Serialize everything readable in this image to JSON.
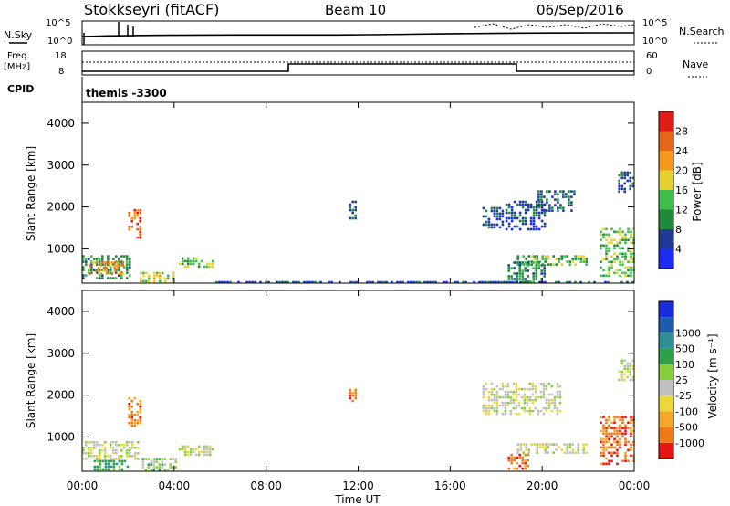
{
  "header": {
    "title": "Stokkseyri (fitACF)",
    "beam": "Beam 10",
    "date": "06/Sep/2016"
  },
  "top_panels": {
    "nsky_label": "N.Sky",
    "nsky_ticks": [
      "10^5",
      "10^0"
    ],
    "nsearch_label": "N.Search",
    "nsearch_ticks": [
      "10^5",
      "10^0"
    ],
    "freq_label_1": "Freq.",
    "freq_label_2": "[MHz]",
    "freq_ticks": [
      "18",
      "8"
    ],
    "nave_label": "Nave",
    "nave_ticks": [
      "60",
      "0"
    ],
    "cpid_label": "CPID",
    "cpid_value": "themis -3300"
  },
  "x_axis": {
    "label": "Time UT",
    "ticks": [
      "00:00",
      "04:00",
      "08:00",
      "12:00",
      "16:00",
      "20:00",
      "00:00"
    ]
  },
  "y_axis": {
    "label": "Slant Range [km]",
    "ticks": [
      "1000",
      "2000",
      "3000",
      "4000"
    ]
  },
  "colors": {
    "power": [
      "#1e2bf0",
      "#1f3c92",
      "#1f8a3a",
      "#3fbf4a",
      "#e5d130",
      "#f39a1e",
      "#e7661a",
      "#e01a14"
    ],
    "velocity": [
      "#ea1313",
      "#ef7a1a",
      "#f5a92a",
      "#ecd83a",
      "#c0c0c0",
      "#86cf3a",
      "#2fa04a",
      "#2e8f95",
      "#1c5ca8",
      "#1a2bdc"
    ]
  },
  "chart_data": [
    {
      "type": "heatmap",
      "title": "Power",
      "colorbar_label": "Power [dB]",
      "colorbar_ticks": [
        "4",
        "8",
        "12",
        "16",
        "20",
        "24",
        "28"
      ],
      "xlim": [
        0,
        24
      ],
      "ylim": [
        180,
        4500
      ],
      "patches": [
        {
          "t0": 0.0,
          "t1": 2.2,
          "r0": 250,
          "r1": 850,
          "c": 2
        },
        {
          "t0": 0.3,
          "t1": 1.8,
          "r0": 350,
          "r1": 700,
          "c": 5
        },
        {
          "t0": 2.0,
          "t1": 2.6,
          "r0": 1200,
          "r1": 1950,
          "c": 6
        },
        {
          "t0": 2.5,
          "t1": 4.0,
          "r0": 200,
          "r1": 450,
          "c": 4
        },
        {
          "t0": 4.2,
          "t1": 5.8,
          "r0": 550,
          "r1": 800,
          "c": 3
        },
        {
          "t0": 11.6,
          "t1": 11.9,
          "r0": 1700,
          "r1": 2150,
          "c": 1
        },
        {
          "t0": 17.4,
          "t1": 18.3,
          "r0": 1500,
          "r1": 2000,
          "c": 1
        },
        {
          "t0": 18.4,
          "t1": 20.2,
          "r0": 1400,
          "r1": 2150,
          "c": 1
        },
        {
          "t0": 19.8,
          "t1": 21.5,
          "r0": 1900,
          "r1": 2400,
          "c": 1
        },
        {
          "t0": 18.9,
          "t1": 22.0,
          "r0": 600,
          "r1": 850,
          "c": 3
        },
        {
          "t0": 18.5,
          "t1": 20.2,
          "r0": 200,
          "r1": 700,
          "c": 2
        },
        {
          "t0": 22.5,
          "t1": 24.0,
          "r0": 300,
          "r1": 1500,
          "c": 3
        },
        {
          "t0": 23.3,
          "t1": 24.0,
          "r0": 2300,
          "r1": 2850,
          "c": 1
        },
        {
          "t0": 5.8,
          "t1": 24.0,
          "r0": 180,
          "r1": 230,
          "c": 1
        }
      ]
    },
    {
      "type": "heatmap",
      "title": "Velocity",
      "colorbar_label": "Velocity [m s⁻¹]",
      "colorbar_ticks": [
        "-1000",
        "-500",
        "-100",
        "-25",
        "25",
        "100",
        "500",
        "1000"
      ],
      "xlim": [
        0,
        24
      ],
      "ylim": [
        180,
        4500
      ],
      "patches": [
        {
          "t0": 0.0,
          "t1": 2.5,
          "r0": 450,
          "r1": 900,
          "c": 4
        },
        {
          "t0": 0.5,
          "t1": 2.2,
          "r0": 200,
          "r1": 450,
          "c": 6
        },
        {
          "t0": 2.0,
          "t1": 2.6,
          "r0": 1200,
          "r1": 1950,
          "c": 1
        },
        {
          "t0": 2.6,
          "t1": 4.2,
          "r0": 200,
          "r1": 500,
          "c": 5
        },
        {
          "t0": 4.2,
          "t1": 5.8,
          "r0": 550,
          "r1": 800,
          "c": 4
        },
        {
          "t0": 11.6,
          "t1": 11.9,
          "r0": 1800,
          "r1": 2150,
          "c": 1
        },
        {
          "t0": 17.4,
          "t1": 20.8,
          "r0": 1500,
          "r1": 2300,
          "c": 4
        },
        {
          "t0": 18.9,
          "t1": 22.0,
          "r0": 600,
          "r1": 850,
          "c": 4
        },
        {
          "t0": 18.5,
          "t1": 19.5,
          "r0": 200,
          "r1": 600,
          "c": 1
        },
        {
          "t0": 22.5,
          "t1": 24.0,
          "r0": 300,
          "r1": 1500,
          "c": 1
        },
        {
          "t0": 23.3,
          "t1": 24.0,
          "r0": 2300,
          "r1": 2850,
          "c": 4
        }
      ]
    }
  ]
}
